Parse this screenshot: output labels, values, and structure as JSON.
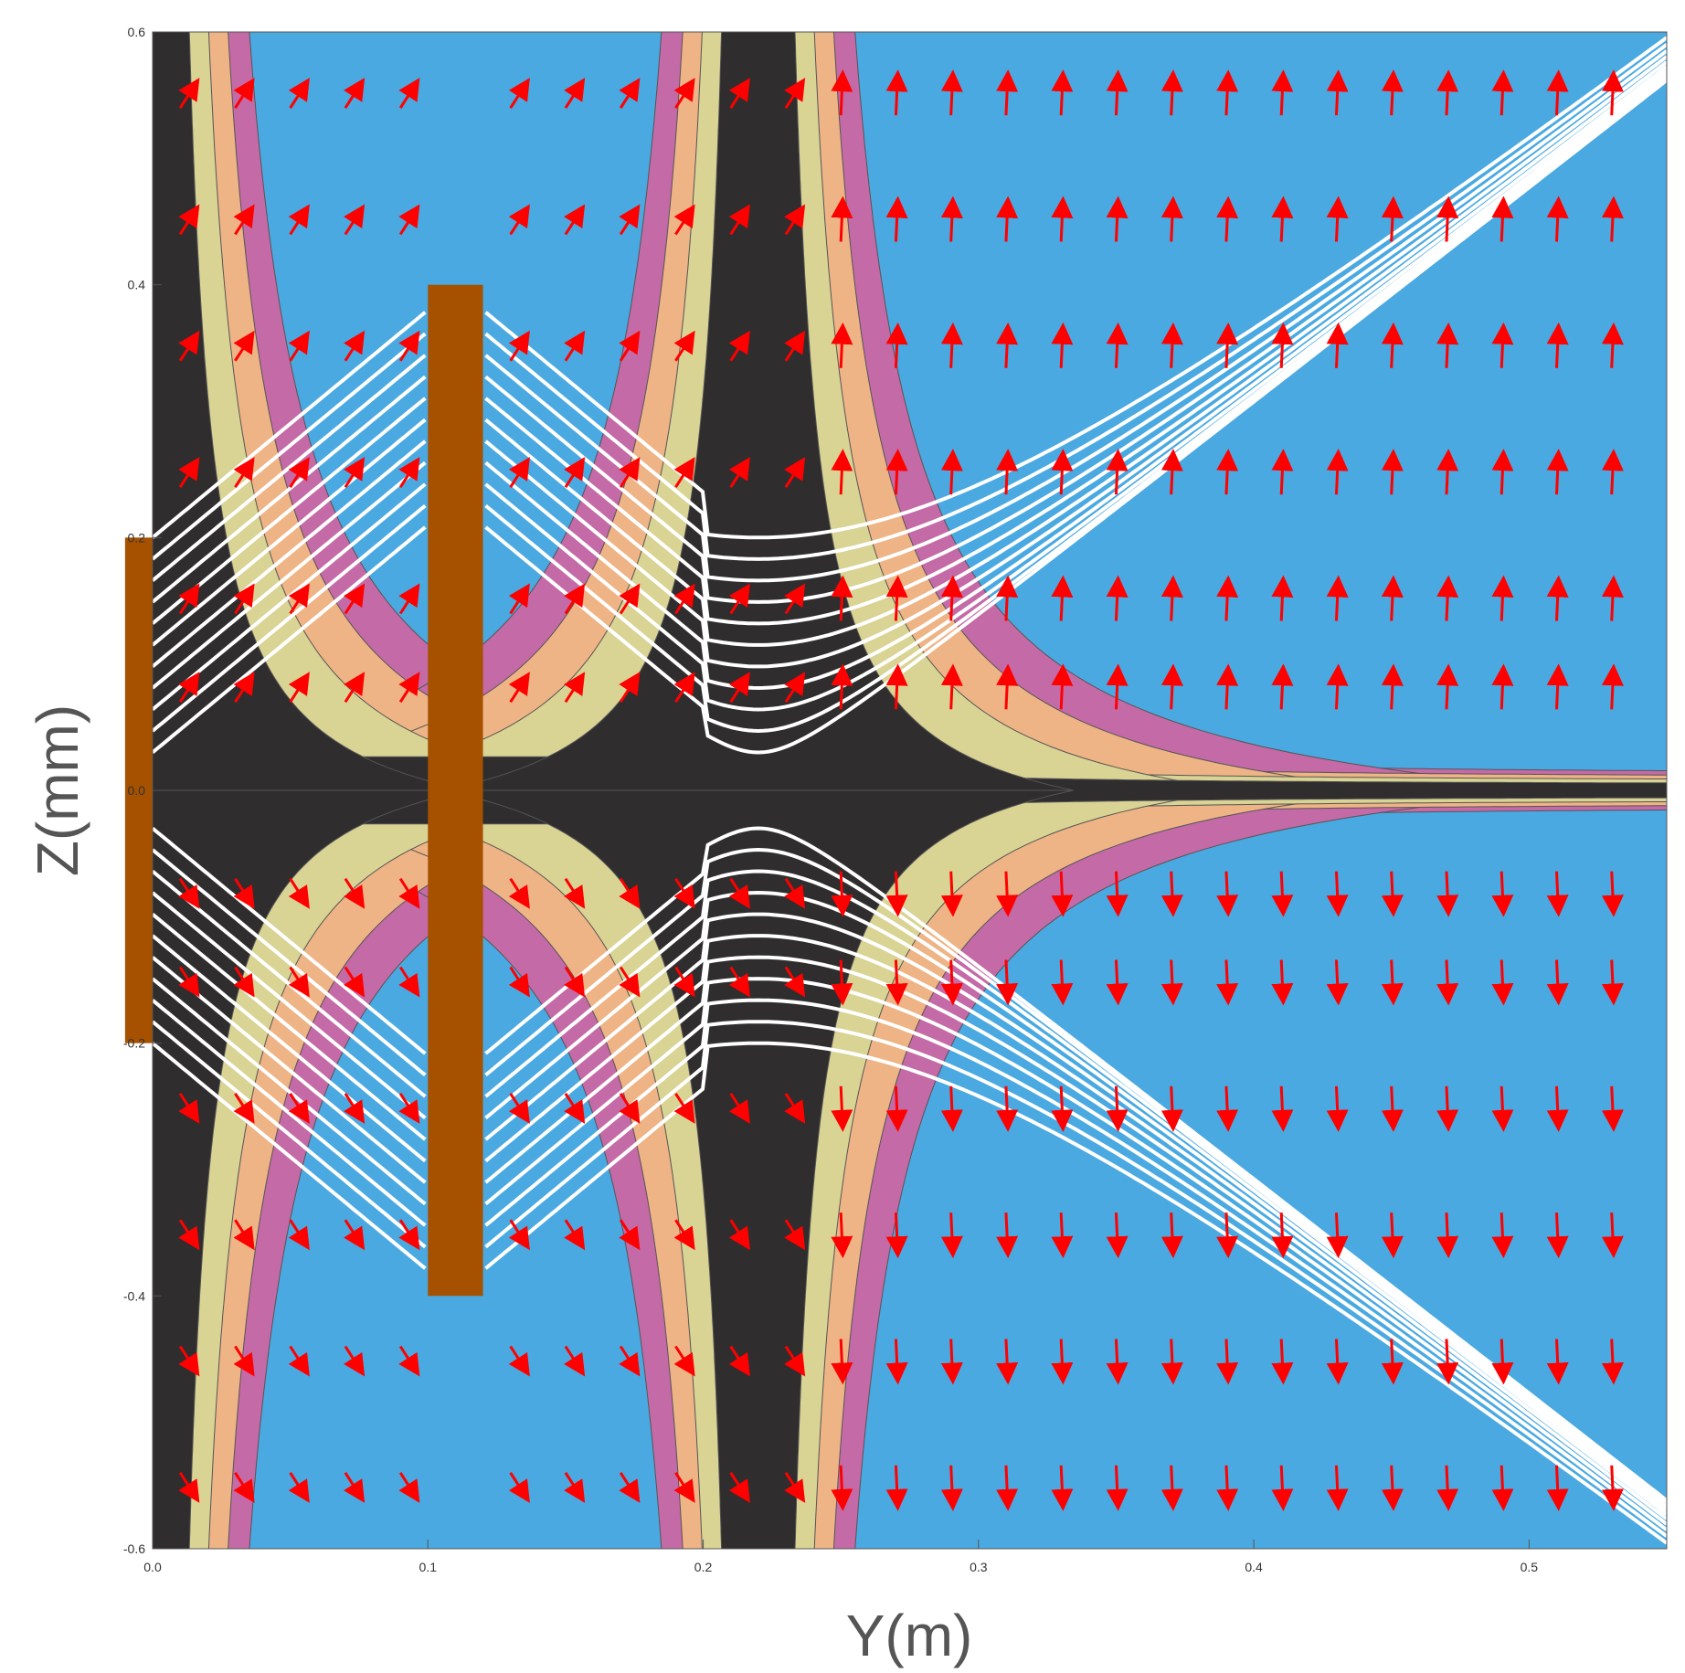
{
  "chart_data": {
    "type": "contour",
    "xlabel": "Y(m)",
    "ylabel": "Z(mm)",
    "xlim": [
      0.0,
      0.55
    ],
    "ylim": [
      -0.6,
      0.6
    ],
    "x_ticks": [
      "0.0",
      "0.1",
      "0.2",
      "0.3",
      "0.4",
      "0.5"
    ],
    "y_ticks": [
      "-0.6",
      "-0.4",
      "-0.2",
      "0.0",
      "0.2",
      "0.4",
      "0.6"
    ],
    "colors": {
      "background": "#4aa9e1",
      "band_outer": "#c46aa6",
      "band_mid": "#eeb486",
      "band_inner": "#d9d394",
      "core": "#2f2d2d",
      "plate": "#a55100",
      "streamline": "#ffffff",
      "arrow": "#ff0000"
    },
    "plates": [
      {
        "name": "plate-1",
        "y_range": [
          -0.01,
          0.0
        ],
        "z_range": [
          -0.2,
          0.2
        ]
      },
      {
        "name": "plate-2",
        "y_range": [
          0.1,
          0.12
        ],
        "z_range": [
          -0.4,
          0.4
        ]
      }
    ],
    "foci_y": [
      0.0,
      0.22
    ],
    "ray_z_offsets_upper": [
      0.2,
      0.183,
      0.166,
      0.149,
      0.132,
      0.115,
      0.098,
      0.081,
      0.064,
      0.047,
      0.03
    ],
    "ray_z_offsets_lower": [
      -0.2,
      -0.183,
      -0.166,
      -0.149,
      -0.132,
      -0.115,
      -0.098,
      -0.081,
      -0.064,
      -0.047,
      -0.03
    ]
  }
}
